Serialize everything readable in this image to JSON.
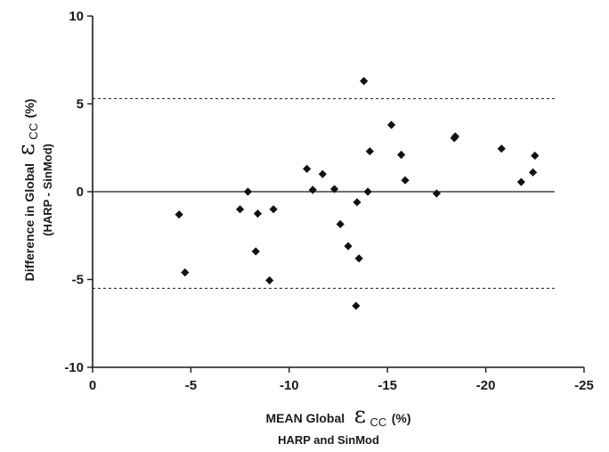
{
  "chart_data": {
    "type": "scatter",
    "xlabel": {
      "prefix": "MEAN  Global",
      "symbol": "ε",
      "subscript": "CC",
      "unit": "(%)",
      "line2": "HARP and SinMod"
    },
    "ylabel": {
      "prefix": "Difference in Global",
      "symbol": "ε",
      "subscript": "CC",
      "unit": "(%)",
      "line2": "(HARP - SinMod)"
    },
    "xlim": [
      0,
      -25
    ],
    "ylim": [
      -10,
      10
    ],
    "x_ticks": [
      {
        "value": 0,
        "label": "0"
      },
      {
        "value": -5,
        "label": "-5"
      },
      {
        "value": -10,
        "label": "-10"
      },
      {
        "value": -15,
        "label": "-15"
      },
      {
        "value": -20,
        "label": "-20"
      },
      {
        "value": -25,
        "label": "-25"
      }
    ],
    "y_ticks": [
      {
        "value": 10,
        "label": "10"
      },
      {
        "value": 5,
        "label": "5"
      },
      {
        "value": 0,
        "label": "0"
      },
      {
        "value": -5,
        "label": "-5"
      },
      {
        "value": -10,
        "label": "-10"
      }
    ],
    "reference_lines": {
      "mean": 0,
      "upper_limit": 5.3,
      "lower_limit": -5.5,
      "x_end": -23.5
    },
    "grid": false,
    "legend": "none",
    "marker": "diamond",
    "marker_color": "#111111",
    "points": [
      {
        "x": -4.4,
        "y": -1.3
      },
      {
        "x": -4.7,
        "y": -4.6
      },
      {
        "x": -7.5,
        "y": -1.0
      },
      {
        "x": -7.9,
        "y": 0.0
      },
      {
        "x": -8.3,
        "y": -3.4
      },
      {
        "x": -8.4,
        "y": -1.25
      },
      {
        "x": -9.0,
        "y": -5.05
      },
      {
        "x": -9.2,
        "y": -1.0
      },
      {
        "x": -10.9,
        "y": 1.3
      },
      {
        "x": -11.2,
        "y": 0.1
      },
      {
        "x": -11.7,
        "y": 1.0
      },
      {
        "x": -12.3,
        "y": 0.15
      },
      {
        "x": -12.6,
        "y": -1.85
      },
      {
        "x": -13.0,
        "y": -3.1
      },
      {
        "x": -13.4,
        "y": -6.5
      },
      {
        "x": -13.45,
        "y": -0.6
      },
      {
        "x": -13.55,
        "y": -3.8
      },
      {
        "x": -13.8,
        "y": 6.3
      },
      {
        "x": -14.0,
        "y": 0.0
      },
      {
        "x": -14.1,
        "y": 2.3
      },
      {
        "x": -15.2,
        "y": 3.8
      },
      {
        "x": -15.7,
        "y": 2.1
      },
      {
        "x": -15.9,
        "y": 0.65
      },
      {
        "x": -17.5,
        "y": -0.1
      },
      {
        "x": -18.4,
        "y": 3.05
      },
      {
        "x": -18.45,
        "y": 3.15
      },
      {
        "x": -20.8,
        "y": 2.45
      },
      {
        "x": -21.8,
        "y": 0.55
      },
      {
        "x": -22.4,
        "y": 1.1
      },
      {
        "x": -22.5,
        "y": 2.05
      }
    ]
  }
}
